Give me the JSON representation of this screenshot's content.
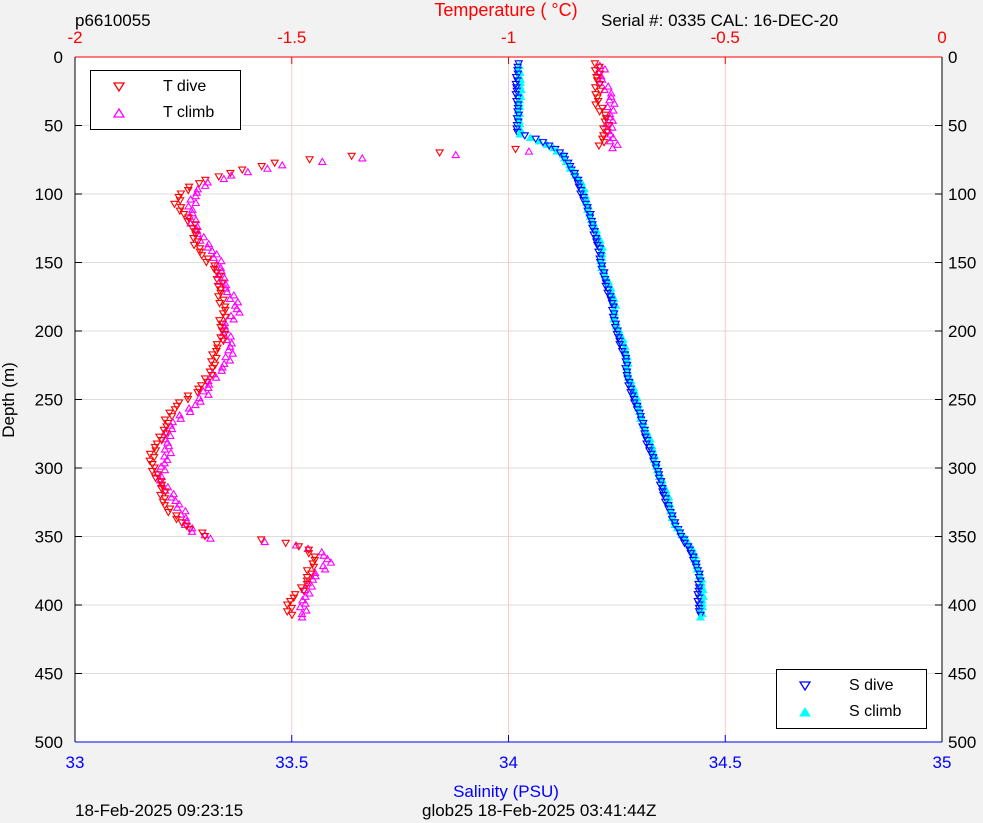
{
  "header": {
    "left_id": "p6610055",
    "right_info": "Serial #: 0335  CAL: 16-DEC-20"
  },
  "footer": {
    "left_timestamp": "18-Feb-2025 09:23:15",
    "right_info": "glob25 18-Feb-2025 03:41:44Z"
  },
  "colors": {
    "temperature_axis": "#ff0000",
    "salinity_axis": "#0000ff",
    "t_dive": "#ff0000",
    "t_climb": "#ff00ff",
    "s_dive": "#0000ff",
    "s_climb": "#00ffff",
    "vgrid": "#ffc8c8",
    "hgrid": "#dddddd"
  },
  "chart_data": {
    "type": "scatter",
    "top_axis": {
      "label": "Temperature (    °C)",
      "lim": [
        -2,
        0
      ],
      "ticks": [
        "-2",
        "-1.5",
        "-1",
        "-0.5",
        "0"
      ]
    },
    "bottom_axis": {
      "label": "Salinity (PSU)",
      "lim": [
        33,
        35
      ],
      "ticks": [
        "33",
        "33.5",
        "34",
        "34.5",
        "35"
      ]
    },
    "left_axis": {
      "label": "Depth (m)",
      "lim": [
        0,
        500
      ],
      "reversed": true,
      "ticks": [
        "0",
        "50",
        "100",
        "150",
        "200",
        "250",
        "300",
        "350",
        "400",
        "450",
        "500"
      ]
    },
    "right_axis": {
      "ticks": [
        "0",
        "50",
        "100",
        "150",
        "200",
        "250",
        "300",
        "350",
        "400",
        "450",
        "500"
      ]
    },
    "legend_top": [
      {
        "label": "T dive",
        "marker": "triangle-down",
        "color_key": "t_dive"
      },
      {
        "label": "T climb",
        "marker": "triangle-up",
        "color_key": "t_climb"
      }
    ],
    "legend_bottom": [
      {
        "label": "S dive",
        "marker": "triangle-down",
        "color_key": "s_dive"
      },
      {
        "label": "S climb",
        "marker": "triangle-up",
        "color_key": "s_climb"
      }
    ],
    "temperature_profile": [
      [
        5,
        -0.8
      ],
      [
        15,
        -0.8
      ],
      [
        25,
        -0.79
      ],
      [
        35,
        -0.79
      ],
      [
        45,
        -0.78
      ],
      [
        55,
        -0.78
      ],
      [
        65,
        -0.78
      ],
      [
        67,
        -0.95
      ],
      [
        70,
        -1.15
      ],
      [
        73,
        -1.4
      ],
      [
        78,
        -1.55
      ],
      [
        85,
        -1.65
      ],
      [
        92,
        -1.72
      ],
      [
        100,
        -1.75
      ],
      [
        108,
        -1.76
      ],
      [
        115,
        -1.75
      ],
      [
        125,
        -1.73
      ],
      [
        135,
        -1.72
      ],
      [
        145,
        -1.7
      ],
      [
        155,
        -1.68
      ],
      [
        165,
        -1.67
      ],
      [
        175,
        -1.66
      ],
      [
        185,
        -1.65
      ],
      [
        195,
        -1.67
      ],
      [
        205,
        -1.66
      ],
      [
        215,
        -1.67
      ],
      [
        225,
        -1.68
      ],
      [
        235,
        -1.7
      ],
      [
        245,
        -1.72
      ],
      [
        255,
        -1.76
      ],
      [
        265,
        -1.79
      ],
      [
        275,
        -1.8
      ],
      [
        285,
        -1.81
      ],
      [
        295,
        -1.82
      ],
      [
        305,
        -1.82
      ],
      [
        315,
        -1.8
      ],
      [
        325,
        -1.79
      ],
      [
        335,
        -1.77
      ],
      [
        343,
        -1.75
      ],
      [
        350,
        -1.7
      ],
      [
        353,
        -1.55
      ],
      [
        357,
        -1.48
      ],
      [
        362,
        -1.45
      ],
      [
        368,
        -1.44
      ],
      [
        375,
        -1.46
      ],
      [
        382,
        -1.47
      ],
      [
        390,
        -1.48
      ],
      [
        397,
        -1.5
      ],
      [
        403,
        -1.5
      ]
    ],
    "salinity_profile": [
      [
        5,
        34.02
      ],
      [
        15,
        34.02
      ],
      [
        25,
        34.02
      ],
      [
        35,
        34.02
      ],
      [
        45,
        34.02
      ],
      [
        55,
        34.02
      ],
      [
        62,
        34.08
      ],
      [
        70,
        34.12
      ],
      [
        80,
        34.14
      ],
      [
        90,
        34.16
      ],
      [
        100,
        34.17
      ],
      [
        110,
        34.18
      ],
      [
        120,
        34.19
      ],
      [
        130,
        34.2
      ],
      [
        140,
        34.21
      ],
      [
        150,
        34.21
      ],
      [
        160,
        34.22
      ],
      [
        170,
        34.23
      ],
      [
        180,
        34.24
      ],
      [
        190,
        34.24
      ],
      [
        200,
        34.25
      ],
      [
        210,
        34.26
      ],
      [
        220,
        34.27
      ],
      [
        230,
        34.27
      ],
      [
        240,
        34.28
      ],
      [
        250,
        34.29
      ],
      [
        260,
        34.3
      ],
      [
        270,
        34.31
      ],
      [
        280,
        34.32
      ],
      [
        290,
        34.33
      ],
      [
        300,
        34.34
      ],
      [
        310,
        34.35
      ],
      [
        320,
        34.36
      ],
      [
        330,
        34.37
      ],
      [
        340,
        34.38
      ],
      [
        350,
        34.4
      ],
      [
        360,
        34.42
      ],
      [
        370,
        34.43
      ],
      [
        380,
        34.44
      ],
      [
        390,
        34.44
      ],
      [
        400,
        34.44
      ],
      [
        406,
        34.44
      ]
    ]
  }
}
